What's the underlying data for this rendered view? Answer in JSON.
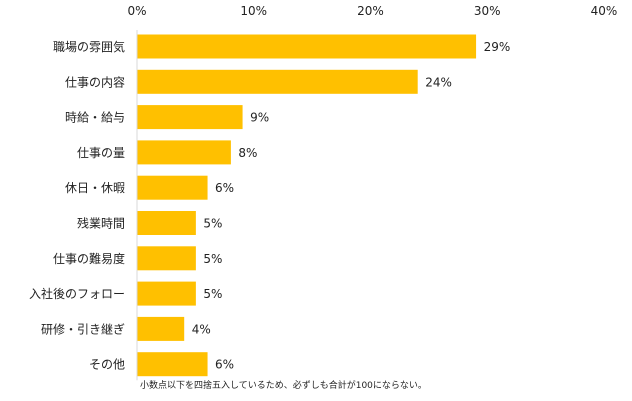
{
  "chart_data": {
    "type": "bar",
    "orientation": "horizontal",
    "categories": [
      "職場の雰囲気",
      "仕事の内容",
      "時給・給与",
      "仕事の量",
      "休日・休暇",
      "残業時間",
      "仕事の難易度",
      "入社後のフォロー",
      "研修・引き継ぎ",
      "その他"
    ],
    "values": [
      29,
      24,
      9,
      8,
      6,
      5,
      5,
      5,
      4,
      6
    ],
    "value_labels": [
      "29%",
      "24%",
      "9%",
      "8%",
      "6%",
      "5%",
      "5%",
      "5%",
      "4%",
      "6%"
    ],
    "xlim": [
      0,
      40
    ],
    "ticks": [
      0,
      10,
      20,
      30,
      40
    ],
    "tick_labels": [
      "0%",
      "10%",
      "20%",
      "30%",
      "40%"
    ],
    "axis_position": "top",
    "grid": false,
    "bar_color": "#FFC000",
    "axis_color": "#d9d9d9",
    "note": "小数点以下を四捨五入しているため、必ずしも合計が100にならない。"
  }
}
